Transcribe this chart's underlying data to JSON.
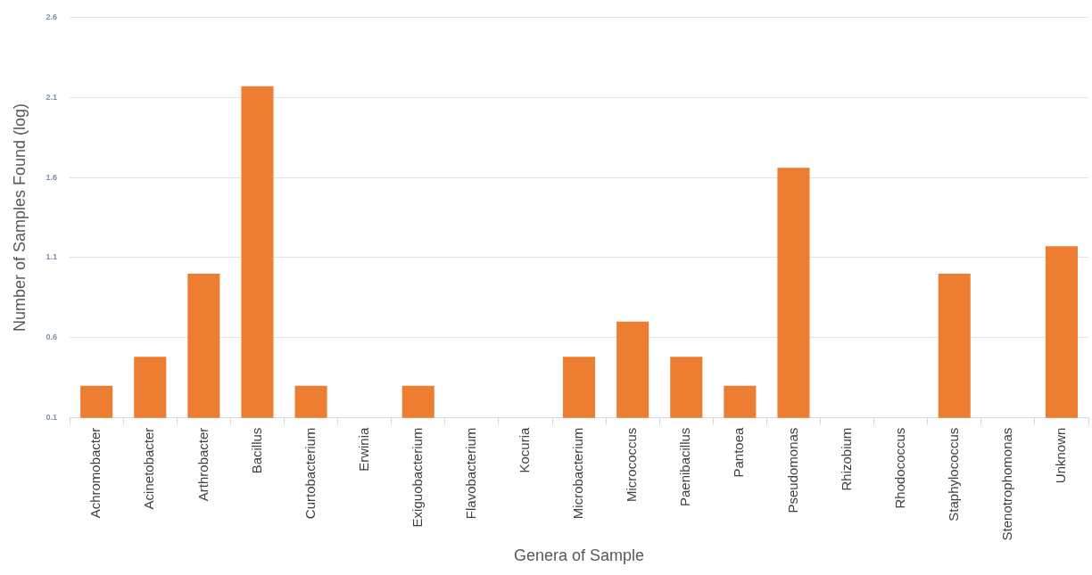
{
  "chart_data": {
    "type": "bar",
    "xlabel": "Genera of Sample",
    "ylabel": "Number of Samples Found (log)",
    "categories": [
      "Achromobacter",
      "Acinetobacter",
      "Arthrobacter",
      "Bacillus",
      "Curtobacterium",
      "Erwinia",
      "Exiguobacterium",
      "Flavobacterium",
      "Kocuria",
      "Microbacterium",
      "Micrococcus",
      "Paenibacillus",
      "Pantoea",
      "Pseudomonas",
      "Rhizobium",
      "Rhodococcus",
      "Staphylococcus",
      "Stenotrophomonas",
      "Unknown"
    ],
    "values": [
      0.3,
      0.48,
      1.0,
      2.17,
      0.3,
      null,
      0.3,
      null,
      null,
      0.48,
      0.7,
      0.48,
      0.3,
      1.66,
      null,
      null,
      1.0,
      null,
      1.17
    ],
    "color": "#ed7d31",
    "ylim": [
      0.1,
      2.6
    ],
    "yticks": [
      0.1,
      0.6,
      1.1,
      1.6,
      2.1,
      2.6
    ],
    "grid": "y"
  }
}
